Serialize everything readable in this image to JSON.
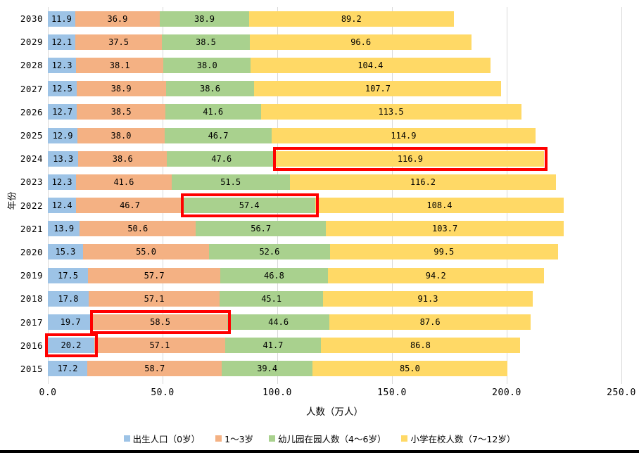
{
  "chart_data": {
    "type": "bar",
    "orientation": "horizontal",
    "stacked": true,
    "title": "",
    "xlabel": "人数（万人）",
    "ylabel": "年份",
    "xlim": [
      0,
      250
    ],
    "xticks": [
      "0.0",
      "50.0",
      "100.0",
      "150.0",
      "200.0",
      "250.0"
    ],
    "grid": true,
    "grid_color": "#D9D9D9",
    "legend_position": "bottom-center",
    "categories": [
      "2030",
      "2029",
      "2028",
      "2027",
      "2026",
      "2025",
      "2024",
      "2023",
      "2022",
      "2021",
      "2020",
      "2019",
      "2018",
      "2017",
      "2016",
      "2015"
    ],
    "series": [
      {
        "name": "出生人口（0岁）",
        "color": "#9DC3E6",
        "values": [
          "11.9",
          "12.1",
          "12.3",
          "12.5",
          "12.7",
          "12.9",
          "13.3",
          "12.3",
          "12.4",
          "13.9",
          "15.3",
          "17.5",
          "17.8",
          "19.7",
          "20.2",
          "17.2"
        ]
      },
      {
        "name": "1～3岁",
        "color": "#F4B183",
        "values": [
          "36.9",
          "37.5",
          "38.1",
          "38.9",
          "38.5",
          "38.0",
          "38.6",
          "41.6",
          "46.7",
          "50.6",
          "55.0",
          "57.7",
          "57.1",
          "58.5",
          "57.1",
          "58.7"
        ]
      },
      {
        "name": "幼儿园在园人数（4～6岁）",
        "color": "#A9D18E",
        "values": [
          "38.9",
          "38.5",
          "38.0",
          "38.6",
          "41.6",
          "46.7",
          "47.6",
          "51.5",
          "57.4",
          "56.7",
          "52.6",
          "46.8",
          "45.1",
          "44.6",
          "41.7",
          "39.4"
        ]
      },
      {
        "name": "小学在校人数（7～12岁）",
        "color": "#FFD966",
        "values": [
          "89.2",
          "96.6",
          "104.4",
          "107.7",
          "113.5",
          "114.9",
          "116.9",
          "116.2",
          "108.4",
          "103.7",
          "99.5",
          "94.2",
          "91.3",
          "87.6",
          "86.8",
          "85.0"
        ]
      }
    ],
    "highlights": [
      {
        "category": "2024",
        "series_index": 3,
        "value": "116.9"
      },
      {
        "category": "2022",
        "series_index": 2,
        "value": "57.4"
      },
      {
        "category": "2017",
        "series_index": 1,
        "value": "58.5"
      },
      {
        "category": "2016",
        "series_index": 0,
        "value": "20.2"
      }
    ],
    "highlight_color": "#FF0000"
  }
}
